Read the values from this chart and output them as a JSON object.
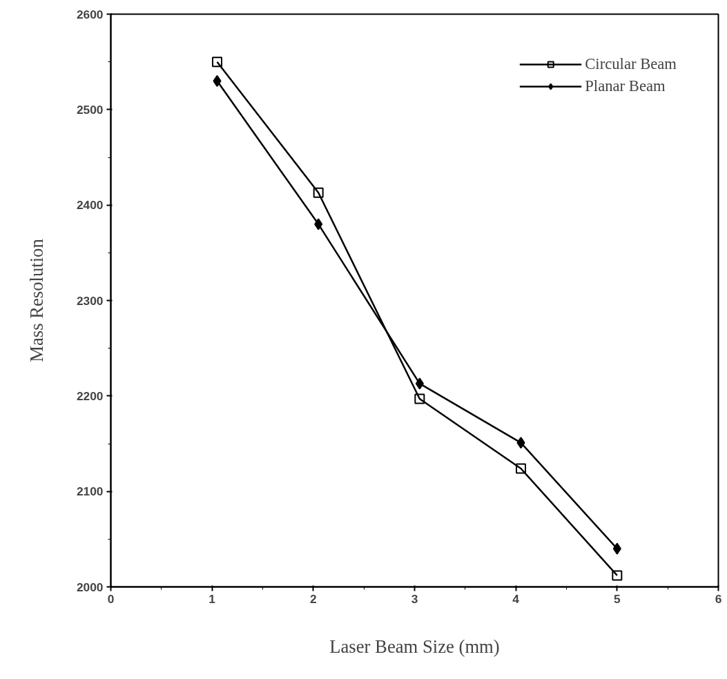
{
  "chart_data": {
    "type": "line",
    "xlabel": "Laser Beam Size (mm)",
    "ylabel": "Mass Resolution",
    "xlim": [
      0,
      6
    ],
    "ylim": [
      2000,
      2600
    ],
    "xticks": [
      0,
      1,
      2,
      3,
      4,
      5,
      6
    ],
    "yticks": [
      2000,
      2100,
      2200,
      2300,
      2400,
      2500,
      2600
    ],
    "grid": false,
    "legend": "top right",
    "line_style": "solid",
    "series": [
      {
        "name": "Circular Beam",
        "color": "#000000",
        "marker": "square",
        "x": [
          1.05,
          2.05,
          3.05,
          4.05,
          5.0
        ],
        "values": [
          2550,
          2413,
          2197,
          2124,
          2012
        ]
      },
      {
        "name": "Planar Beam",
        "color": "#000000",
        "marker": "diamond",
        "x": [
          1.05,
          2.05,
          3.05,
          4.05,
          5.0
        ],
        "values": [
          2530,
          2380,
          2213,
          2151,
          2040
        ]
      }
    ]
  }
}
